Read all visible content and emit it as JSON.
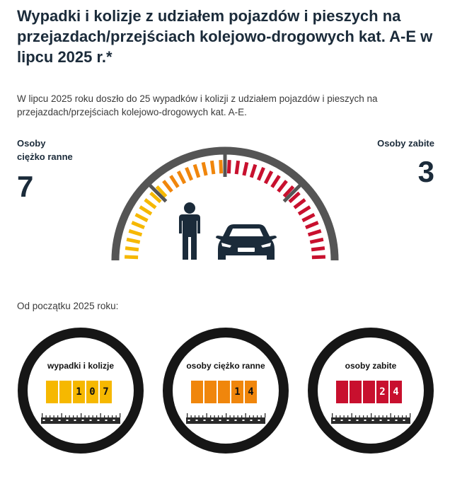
{
  "title": "Wypadki i kolizje z udziałem pojazdów i pieszych na przejazdach/przejściach kolejowo-drogowych kat. A-E w lipcu 2025 r.*",
  "intro": "W lipcu 2025 roku doszło do 25 wypadków i kolizji z udziałem pojazdów i pieszych na przejazdach/przejściach kolejowo-drogowych kat. A-E.",
  "injured": {
    "label_line1": "Osoby",
    "label_line2": "ciężko ranne",
    "value": "7"
  },
  "killed": {
    "label": "Osoby zabite",
    "value": "3"
  },
  "gauge": {
    "icons": [
      "pedestrian-icon",
      "car-icon"
    ]
  },
  "since_label": "Od początku 2025 roku:",
  "counters": [
    {
      "label": "wypadki i kolizje",
      "digits": [
        "",
        "",
        "1",
        "0",
        "7"
      ],
      "color": "#f6b800"
    },
    {
      "label": "osoby ciężko ranne",
      "digits": [
        "",
        "",
        "",
        "1",
        "4"
      ],
      "color": "#f0860c"
    },
    {
      "label": "osoby zabite",
      "digits": [
        "",
        "",
        "",
        "2",
        "4"
      ],
      "color": "#c8102e"
    }
  ],
  "colors": {
    "text": "#1b2b3a",
    "gauge_frame": "#555555",
    "yellow": "#f6b800",
    "orange": "#f0860c",
    "red": "#c8102e"
  }
}
